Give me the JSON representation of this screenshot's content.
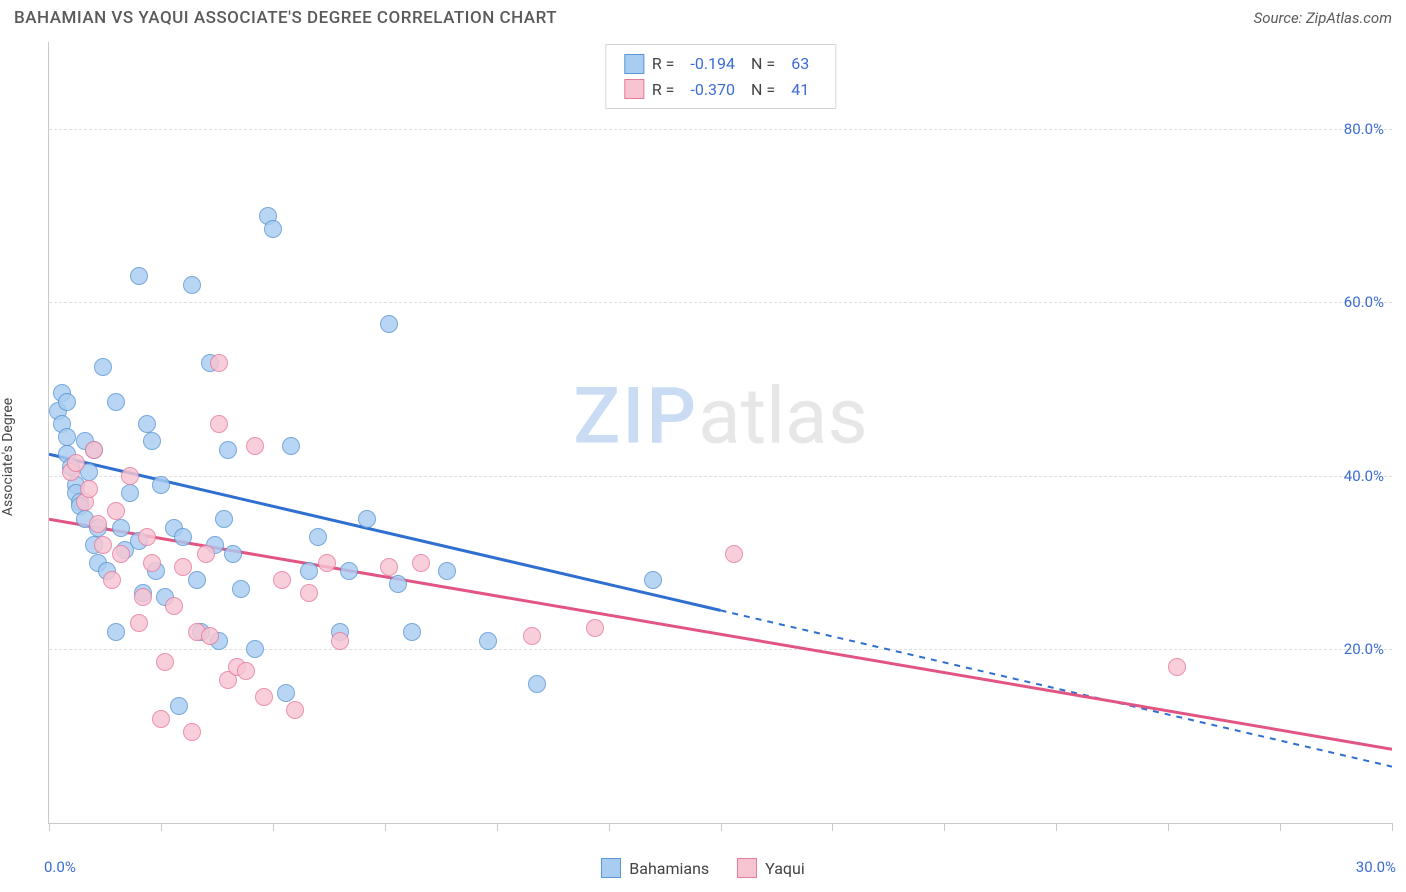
{
  "title": "BAHAMIAN VS YAQUI ASSOCIATE'S DEGREE CORRELATION CHART",
  "source": "Source: ZipAtlas.com",
  "y_axis_title": "Associate's Degree",
  "watermark": {
    "zip": "ZIP",
    "atlas": "atlas"
  },
  "axes": {
    "xlim": [
      0,
      30
    ],
    "ylim": [
      0,
      90
    ],
    "x_ticks": [
      0,
      2.5,
      5,
      7.5,
      10,
      12.5,
      15,
      17.5,
      20,
      22.5,
      25,
      27.5,
      30
    ],
    "x_labels": {
      "start": "0.0%",
      "end": "30.0%"
    },
    "y_grid": [
      20,
      40,
      60,
      80
    ],
    "y_labels": [
      "20.0%",
      "40.0%",
      "60.0%",
      "80.0%"
    ]
  },
  "series": [
    {
      "name": "Bahamians",
      "fill": "#a9cdf1",
      "stroke": "#5a97d6",
      "R": "-0.194",
      "N": "63",
      "marker_radius": 9,
      "trend": {
        "start": [
          0,
          42.5
        ],
        "solid_end": [
          15,
          24.5
        ],
        "dash_end": [
          30,
          6.5
        ],
        "color": "#2f6fd0",
        "width": 3
      },
      "points": [
        [
          0.2,
          47.5
        ],
        [
          0.3,
          49.5
        ],
        [
          0.3,
          46
        ],
        [
          0.4,
          44.5
        ],
        [
          0.4,
          48.5
        ],
        [
          0.4,
          42.5
        ],
        [
          0.6,
          39
        ],
        [
          0.5,
          41
        ],
        [
          0.6,
          38
        ],
        [
          0.7,
          37
        ],
        [
          0.7,
          36.5
        ],
        [
          0.8,
          35
        ],
        [
          0.8,
          44
        ],
        [
          0.9,
          40.5
        ],
        [
          1.0,
          32
        ],
        [
          1.0,
          43
        ],
        [
          1.1,
          30
        ],
        [
          1.1,
          34
        ],
        [
          1.2,
          52.5
        ],
        [
          1.3,
          29
        ],
        [
          1.5,
          48.5
        ],
        [
          1.5,
          22
        ],
        [
          1.6,
          34
        ],
        [
          1.7,
          31.5
        ],
        [
          1.8,
          38
        ],
        [
          2.0,
          63
        ],
        [
          2.0,
          32.5
        ],
        [
          2.1,
          26.5
        ],
        [
          2.2,
          46
        ],
        [
          2.3,
          44
        ],
        [
          2.4,
          29
        ],
        [
          2.5,
          39
        ],
        [
          2.6,
          26
        ],
        [
          2.8,
          34
        ],
        [
          2.9,
          13.5
        ],
        [
          3.0,
          33
        ],
        [
          3.2,
          62
        ],
        [
          3.3,
          28
        ],
        [
          3.4,
          22
        ],
        [
          3.6,
          53
        ],
        [
          3.7,
          32
        ],
        [
          3.8,
          21
        ],
        [
          3.9,
          35
        ],
        [
          4.0,
          43
        ],
        [
          4.1,
          31
        ],
        [
          4.3,
          27
        ],
        [
          4.6,
          20
        ],
        [
          4.9,
          70
        ],
        [
          5.0,
          68.5
        ],
        [
          5.3,
          15
        ],
        [
          5.4,
          43.5
        ],
        [
          5.8,
          29
        ],
        [
          6.0,
          33
        ],
        [
          6.5,
          22
        ],
        [
          6.7,
          29
        ],
        [
          7.1,
          35
        ],
        [
          7.6,
          57.5
        ],
        [
          7.8,
          27.5
        ],
        [
          8.1,
          22
        ],
        [
          8.9,
          29
        ],
        [
          9.8,
          21
        ],
        [
          10.9,
          16
        ],
        [
          13.5,
          28
        ]
      ]
    },
    {
      "name": "Yaqui",
      "fill": "#f7c4d2",
      "stroke": "#e77b9c",
      "R": "-0.370",
      "N": "41",
      "marker_radius": 9,
      "trend": {
        "start": [
          0,
          35
        ],
        "solid_end": [
          30,
          8.5
        ],
        "color": "#e25582",
        "width": 3
      },
      "points": [
        [
          0.5,
          40.5
        ],
        [
          0.6,
          41.5
        ],
        [
          0.8,
          37
        ],
        [
          0.9,
          38.5
        ],
        [
          1.0,
          43
        ],
        [
          1.1,
          34.5
        ],
        [
          1.2,
          32
        ],
        [
          1.4,
          28
        ],
        [
          1.5,
          36
        ],
        [
          1.6,
          31
        ],
        [
          1.8,
          40
        ],
        [
          2.0,
          23
        ],
        [
          2.1,
          26
        ],
        [
          2.2,
          33
        ],
        [
          2.3,
          30
        ],
        [
          2.5,
          12
        ],
        [
          2.6,
          18.5
        ],
        [
          2.8,
          25
        ],
        [
          3.0,
          29.5
        ],
        [
          3.2,
          10.5
        ],
        [
          3.3,
          22
        ],
        [
          3.5,
          31
        ],
        [
          3.6,
          21.5
        ],
        [
          3.8,
          53
        ],
        [
          3.8,
          46
        ],
        [
          4.0,
          16.5
        ],
        [
          4.2,
          18
        ],
        [
          4.4,
          17.5
        ],
        [
          4.6,
          43.5
        ],
        [
          4.8,
          14.5
        ],
        [
          5.2,
          28
        ],
        [
          5.5,
          13
        ],
        [
          5.8,
          26.5
        ],
        [
          6.2,
          30
        ],
        [
          6.5,
          21
        ],
        [
          7.6,
          29.5
        ],
        [
          8.3,
          30
        ],
        [
          10.8,
          21.5
        ],
        [
          12.2,
          22.5
        ],
        [
          15.3,
          31
        ],
        [
          25.2,
          18
        ]
      ]
    }
  ],
  "legend_bottom": [
    {
      "label": "Bahamians",
      "fill": "#a9cdf1",
      "stroke": "#5a97d6"
    },
    {
      "label": "Yaqui",
      "fill": "#f7c4d2",
      "stroke": "#e77b9c"
    }
  ]
}
